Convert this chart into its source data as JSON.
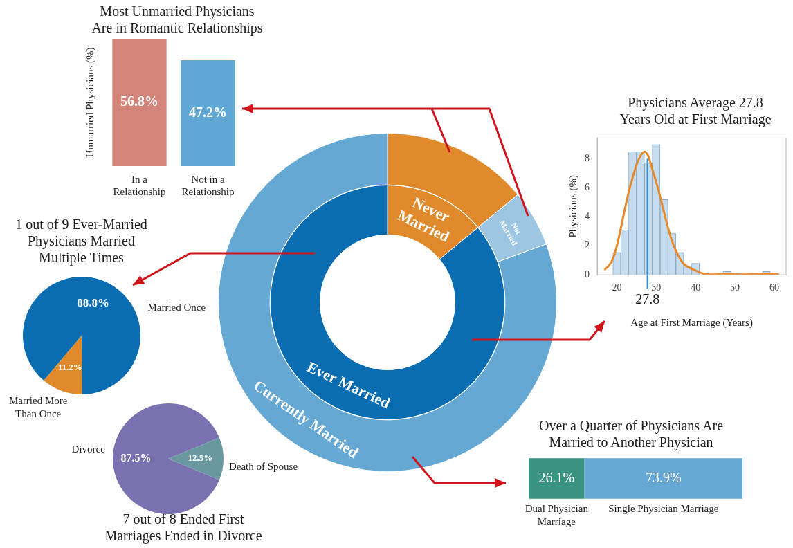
{
  "chart_data": [
    {
      "type": "bar",
      "title": "Most Unmarried Physicians Are in Romantic Relationships",
      "ylabel": "Unmarried Physicians (%)",
      "categories": [
        "In a Relationship",
        "Not in a Relationship"
      ],
      "values": [
        56.8,
        47.2
      ],
      "colors": [
        "#d4857a",
        "#62a8d4"
      ],
      "value_labels": [
        "56.8%",
        "47.2%"
      ]
    },
    {
      "type": "donut",
      "categories": [
        "Never Married",
        "Ever Married"
      ],
      "values": [
        14,
        86
      ],
      "colors": [
        "#e08a2c",
        "#0a6db2"
      ]
    },
    {
      "type": "donut",
      "categories": [
        null,
        "Not Married",
        "Currently Married"
      ],
      "values": [
        14,
        5.4,
        80.6
      ],
      "colors": [
        "#e08a2c",
        "#9dc6e3",
        "#64a8d3"
      ]
    },
    {
      "type": "pie",
      "title": "1 out of 9 Ever-Married Physicians Married Multiple Times",
      "categories": [
        "Married Once",
        "Married More Than Once"
      ],
      "values": [
        88.8,
        11.2
      ],
      "colors": [
        "#0a6db2",
        "#e08a2c"
      ],
      "value_labels": [
        "88.8%",
        "11.2%"
      ]
    },
    {
      "type": "pie",
      "title": "7 out of 8 Ended First Marriages Ended in Divorce",
      "categories": [
        "Divorce",
        "Death of Spouse"
      ],
      "values": [
        87.5,
        12.5
      ],
      "colors": [
        "#7a72b0",
        "#6a98a0"
      ],
      "value_labels": [
        "87.5%",
        "12.5%"
      ]
    },
    {
      "type": "histogram",
      "title": "Physicians Average 27.8 Years Old at First Marriage",
      "xlabel": "Age at First Marriage (Years)",
      "ylabel": "Physicians (%)",
      "bins": [
        19,
        21,
        23,
        25,
        27,
        29,
        31,
        33,
        35,
        37,
        39,
        41,
        43,
        45,
        47,
        49,
        51,
        53,
        55,
        57,
        59
      ],
      "values": [
        1.55,
        3.1,
        8.5,
        8.5,
        7.75,
        9.0,
        5.2,
        2.85,
        1.55,
        0.55,
        0.8,
        0,
        0,
        0,
        0.23,
        0,
        0,
        0,
        0,
        0.23
      ],
      "color": "#c6dcef",
      "series": [
        {
          "type": "line",
          "color": "#e8892a",
          "x": [
            17,
            18,
            19,
            20,
            21,
            22,
            23,
            24,
            25,
            26,
            27,
            28,
            29,
            30,
            31,
            32,
            33,
            34,
            35,
            36,
            37,
            38,
            39,
            40,
            41,
            42,
            43,
            44,
            46,
            48,
            50,
            52,
            55,
            58,
            60,
            61
          ],
          "values": [
            0.38,
            0.65,
            1.1,
            2.0,
            3.2,
            4.5,
            5.7,
            6.7,
            7.6,
            8.2,
            8.5,
            8.2,
            7.3,
            6.4,
            5.4,
            4.3,
            3.25,
            2.35,
            1.66,
            1.13,
            0.76,
            0.56,
            0.42,
            0.3,
            0.17,
            0.08,
            0.03,
            0.02,
            0.03,
            0.08,
            0.04,
            0.02,
            0.04,
            0.08,
            0.06,
            0.05
          ]
        }
      ],
      "xlim": [
        15,
        63
      ],
      "xticks": [
        20,
        30,
        40,
        50,
        60
      ],
      "ylim": [
        0,
        9.45
      ],
      "yticks": [
        0,
        2,
        4,
        6,
        8
      ],
      "ref_lines": [
        {
          "axis": "x",
          "value": 27.8,
          "label": "27.8",
          "color": "#3a8fd0"
        }
      ]
    },
    {
      "type": "bar",
      "orientation": "horizontal",
      "stacked": true,
      "title": "Over a Quarter of Physicians Are Married to Another Physician",
      "categories": [
        null
      ],
      "series": [
        {
          "name": "Dual Physician Marriage",
          "color": "#3a9482",
          "values": [
            26.1
          ],
          "value_labels": [
            "26.1%"
          ]
        },
        {
          "name": "Single Physician Marriage",
          "color": "#64a8d3",
          "values": [
            73.9
          ],
          "value_labels": [
            "73.9%"
          ]
        }
      ]
    }
  ]
}
